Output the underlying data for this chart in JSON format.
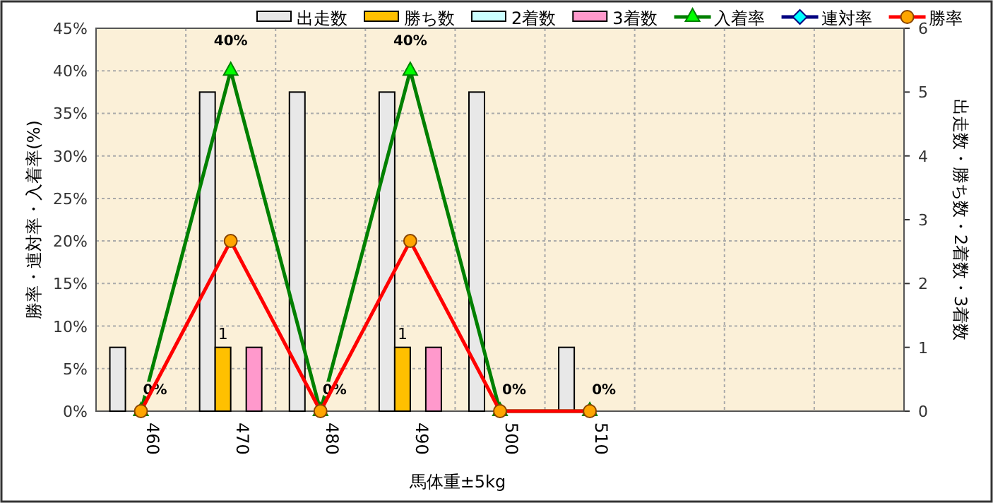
{
  "chart_data": {
    "type": "bar",
    "xlabel": "馬体重±5kg",
    "ylabel": "勝率・連対率・入着率(%)",
    "y2label": "出走数・勝ち数・2着数・3着数",
    "categories": [
      "460",
      "470",
      "480",
      "490",
      "500",
      "510",
      null,
      null,
      null
    ],
    "series": [
      {
        "name": "出走数",
        "axis": "y2",
        "color": "#e8e8e8",
        "values": [
          1,
          5,
          5,
          5,
          5,
          1,
          null,
          null,
          null
        ]
      },
      {
        "name": "勝ち数",
        "axis": "y2",
        "color": "#ffc000",
        "values": [
          null,
          1,
          null,
          1,
          null,
          null,
          null,
          null,
          null
        ],
        "value_labels": [
          null,
          "1",
          null,
          "1",
          null,
          null,
          null,
          null,
          null
        ]
      },
      {
        "name": "2着数",
        "axis": "y2",
        "color": "#ccffff",
        "values": [
          null,
          null,
          null,
          null,
          null,
          null,
          null,
          null,
          null
        ]
      },
      {
        "name": "3着数",
        "axis": "y2",
        "color": "#ff99cc",
        "values": [
          null,
          1,
          null,
          1,
          null,
          null,
          null,
          null,
          null
        ]
      },
      {
        "name": "入着率",
        "type": "line",
        "color": "#008000",
        "marker": "triangle",
        "values": [
          0,
          40,
          0,
          40,
          0,
          0,
          null,
          null,
          null
        ],
        "value_labels": [
          "0%",
          "40%",
          "0%",
          "40%",
          "0%",
          "0%",
          null,
          null,
          null
        ]
      },
      {
        "name": "連対率",
        "type": "line",
        "color": "#000080",
        "marker": "diamond",
        "values": [
          null,
          null,
          null,
          null,
          null,
          null,
          null,
          null,
          null
        ]
      },
      {
        "name": "勝率",
        "type": "line",
        "color": "#ff0000",
        "marker": "circle",
        "values": [
          0,
          20,
          0,
          20,
          0,
          0,
          null,
          null,
          null
        ]
      }
    ],
    "ylim": [
      0,
      45
    ],
    "yticks": [
      {
        "value": 0,
        "label": "0%"
      },
      {
        "value": 5,
        "label": "5%"
      },
      {
        "value": 10,
        "label": "10%"
      },
      {
        "value": 15,
        "label": "15%"
      },
      {
        "value": 20,
        "label": "20%"
      },
      {
        "value": 25,
        "label": "25%"
      },
      {
        "value": 30,
        "label": "30%"
      },
      {
        "value": 35,
        "label": "35%"
      },
      {
        "value": 40,
        "label": "40%"
      },
      {
        "value": 45,
        "label": "45%"
      }
    ],
    "y2lim": [
      0,
      6
    ],
    "y2ticks": [
      0,
      1,
      2,
      3,
      4,
      5,
      6
    ],
    "grid": true,
    "legend": "top"
  }
}
